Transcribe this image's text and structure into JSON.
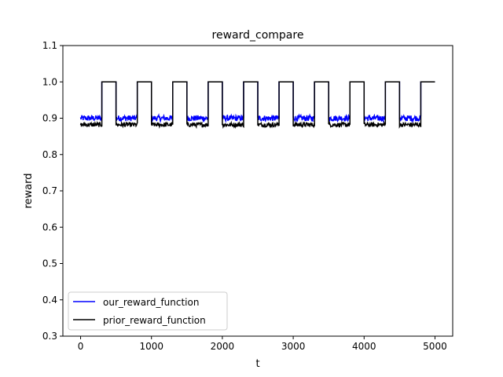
{
  "chart_data": {
    "type": "line",
    "title": "reward_compare",
    "xlabel": "t",
    "ylabel": "reward",
    "xlim": [
      -250,
      5250
    ],
    "ylim": [
      0.3,
      1.1
    ],
    "xticks": [
      0,
      1000,
      2000,
      3000,
      4000,
      5000
    ],
    "yticks": [
      0.3,
      0.4,
      0.5,
      0.6,
      0.7,
      0.8,
      0.9,
      1.0,
      1.1
    ],
    "grid": false,
    "legend_position": "lower-left",
    "series": [
      {
        "name": "our_reward_function",
        "color": "#0000ff",
        "segments": [
          {
            "x": [
              0,
              300
            ],
            "y": 0.9,
            "noise": 0.008
          },
          {
            "x": [
              300,
              500
            ],
            "y": 1.0
          },
          {
            "x": [
              500,
              800
            ],
            "y": 0.9,
            "noise": 0.008
          },
          {
            "x": [
              800,
              1000
            ],
            "y": 1.0
          },
          {
            "x": [
              1000,
              1300
            ],
            "y": 0.9,
            "noise": 0.008
          },
          {
            "x": [
              1300,
              1500
            ],
            "y": 1.0
          },
          {
            "x": [
              1500,
              1800
            ],
            "y": 0.9,
            "noise": 0.008
          },
          {
            "x": [
              1800,
              2000
            ],
            "y": 1.0
          },
          {
            "x": [
              2000,
              2300
            ],
            "y": 0.9,
            "noise": 0.008
          },
          {
            "x": [
              2300,
              2500
            ],
            "y": 1.0
          },
          {
            "x": [
              2500,
              2800
            ],
            "y": 0.9,
            "noise": 0.008
          },
          {
            "x": [
              2800,
              3000
            ],
            "y": 1.0
          },
          {
            "x": [
              3000,
              3300
            ],
            "y": 0.9,
            "noise": 0.008
          },
          {
            "x": [
              3300,
              3500
            ],
            "y": 1.0
          },
          {
            "x": [
              3500,
              3800
            ],
            "y": 0.9,
            "noise": 0.008
          },
          {
            "x": [
              3800,
              4000
            ],
            "y": 1.0
          },
          {
            "x": [
              4000,
              4300
            ],
            "y": 0.9,
            "noise": 0.008
          },
          {
            "x": [
              4300,
              4500
            ],
            "y": 1.0
          },
          {
            "x": [
              4500,
              4800
            ],
            "y": 0.9,
            "noise": 0.008
          },
          {
            "x": [
              4800,
              5000
            ],
            "y": 1.0
          }
        ]
      },
      {
        "name": "prior_reward_function",
        "color": "#000000",
        "segments": [
          {
            "x": [
              0,
              300
            ],
            "y": 0.882,
            "noise": 0.006
          },
          {
            "x": [
              300,
              500
            ],
            "y": 1.0
          },
          {
            "x": [
              500,
              800
            ],
            "y": 0.882,
            "noise": 0.006
          },
          {
            "x": [
              800,
              1000
            ],
            "y": 1.0
          },
          {
            "x": [
              1000,
              1300
            ],
            "y": 0.882,
            "noise": 0.006
          },
          {
            "x": [
              1300,
              1500
            ],
            "y": 1.0
          },
          {
            "x": [
              1500,
              1800
            ],
            "y": 0.882,
            "noise": 0.006
          },
          {
            "x": [
              1800,
              2000
            ],
            "y": 1.0
          },
          {
            "x": [
              2000,
              2300
            ],
            "y": 0.882,
            "noise": 0.006
          },
          {
            "x": [
              2300,
              2500
            ],
            "y": 1.0
          },
          {
            "x": [
              2500,
              2800
            ],
            "y": 0.882,
            "noise": 0.006
          },
          {
            "x": [
              2800,
              3000
            ],
            "y": 1.0
          },
          {
            "x": [
              3000,
              3300
            ],
            "y": 0.882,
            "noise": 0.006
          },
          {
            "x": [
              3300,
              3500
            ],
            "y": 1.0
          },
          {
            "x": [
              3500,
              3800
            ],
            "y": 0.882,
            "noise": 0.006
          },
          {
            "x": [
              3800,
              4000
            ],
            "y": 1.0
          },
          {
            "x": [
              4000,
              4300
            ],
            "y": 0.882,
            "noise": 0.006
          },
          {
            "x": [
              4300,
              4500
            ],
            "y": 1.0
          },
          {
            "x": [
              4500,
              4800
            ],
            "y": 0.882,
            "noise": 0.006
          },
          {
            "x": [
              4800,
              5000
            ],
            "y": 1.0
          }
        ]
      }
    ]
  }
}
